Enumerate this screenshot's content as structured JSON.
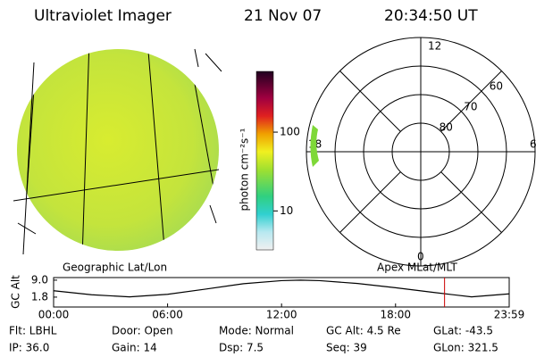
{
  "header": {
    "instrument": "Ultraviolet Imager",
    "date": "21 Nov 07",
    "time": "20:34:50 UT"
  },
  "image_panel": {
    "label": "Geographic Lat/Lon"
  },
  "colorbar": {
    "label": "photon cm⁻²s⁻¹",
    "log_scale": true,
    "lim": [
      3.2,
      590
    ],
    "ticks": [
      10,
      100
    ]
  },
  "polar": {
    "label": "Apex MLat/MLT",
    "rlim": [
      90,
      50
    ],
    "rings": [
      80,
      70,
      60,
      50
    ],
    "mlt_labels": [
      12,
      18,
      6,
      0
    ]
  },
  "chart_data": {
    "type": "line",
    "ylabel": "GC Alt",
    "color": "#000000",
    "x": [
      0,
      2,
      4,
      6,
      8,
      10,
      12,
      13,
      14,
      16,
      18,
      20,
      22,
      23.983
    ],
    "values": [
      4.5,
      2.8,
      1.9,
      3.0,
      5.2,
      7.5,
      8.8,
      9.0,
      8.8,
      7.6,
      5.8,
      3.8,
      1.9,
      3.2
    ],
    "xlim": [
      0,
      23.983
    ],
    "ylim": [
      -2.4,
      10.1
    ],
    "yticks": [
      {
        "value": 1.8,
        "label": "1.8"
      },
      {
        "value": 9,
        "label": "9.0"
      }
    ],
    "xticks": [
      {
        "value": 0,
        "label": "00:00"
      },
      {
        "value": 6,
        "label": "06:00"
      },
      {
        "value": 12,
        "label": "12:00"
      },
      {
        "value": 18,
        "label": "18:00"
      },
      {
        "value": 23.983,
        "label": "23:59"
      }
    ],
    "marker_x": 20.58,
    "marker_color": "#cc0000"
  },
  "info": [
    [
      "Flt: LBHL",
      "Door: Open",
      "Mode: Normal",
      "GC Alt: 4.5 Re",
      "GLat: -43.5"
    ],
    [
      "IP: 36.0",
      "Gain: 14",
      "Dsp:    7.5",
      "Seq: 39",
      "GLon: 321.5"
    ]
  ]
}
